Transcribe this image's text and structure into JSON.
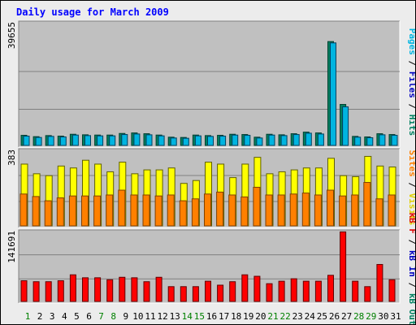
{
  "title": "Daily usage for March 2009",
  "chart_data": [
    {
      "type": "bar",
      "categories": [
        "1",
        "2",
        "3",
        "4",
        "5",
        "6",
        "7",
        "8",
        "9",
        "10",
        "11",
        "12",
        "13",
        "14",
        "15",
        "16",
        "17",
        "18",
        "19",
        "20",
        "21",
        "22",
        "23",
        "24",
        "25",
        "26",
        "27",
        "28",
        "29",
        "30",
        "31"
      ],
      "weekend_days": [
        "1",
        "7",
        "8",
        "14",
        "15",
        "21",
        "22",
        "28",
        "29"
      ],
      "ymax_label": "39655",
      "ylim": [
        0,
        39655
      ],
      "legend": [
        {
          "text": "Pages",
          "color": "#00b4e0"
        },
        {
          "text": " / ",
          "color": "#000000"
        },
        {
          "text": "Files",
          "color": "#0000c0"
        },
        {
          "text": " / ",
          "color": "#000000"
        },
        {
          "text": "Hits",
          "color": "#008060"
        }
      ],
      "series": [
        {
          "name": "Hits",
          "color": "#008060",
          "values": [
            3800,
            3300,
            3700,
            3500,
            4200,
            4000,
            3900,
            3900,
            4500,
            4700,
            4400,
            3900,
            3100,
            3000,
            3900,
            3700,
            3800,
            4200,
            4100,
            3100,
            4200,
            4000,
            4400,
            5000,
            4700,
            39000,
            15400,
            3400,
            3200,
            4400,
            4100
          ]
        },
        {
          "name": "Files",
          "color": "#00b4e0",
          "values": [
            3500,
            3000,
            3400,
            3200,
            3900,
            3700,
            3600,
            3600,
            4100,
            4300,
            4000,
            3600,
            2800,
            2700,
            3600,
            3400,
            3500,
            3900,
            3800,
            2800,
            3900,
            3700,
            4100,
            4600,
            4300,
            38500,
            14500,
            3100,
            2900,
            4000,
            3800
          ]
        }
      ]
    },
    {
      "type": "bar",
      "categories": [
        "1",
        "2",
        "3",
        "4",
        "5",
        "6",
        "7",
        "8",
        "9",
        "10",
        "11",
        "12",
        "13",
        "14",
        "15",
        "16",
        "17",
        "18",
        "19",
        "20",
        "21",
        "22",
        "23",
        "24",
        "25",
        "26",
        "27",
        "28",
        "29",
        "30",
        "31"
      ],
      "ymax_label": "383",
      "ylim": [
        0,
        383
      ],
      "legend": [
        {
          "text": "Sites",
          "color": "#ff8000"
        },
        {
          "text": " / ",
          "color": "#000000"
        },
        {
          "text": "Visits",
          "color": "#e0d000"
        }
      ],
      "series": [
        {
          "name": "Visits",
          "color": "#ffff00",
          "values": [
            320,
            270,
            260,
            310,
            300,
            340,
            320,
            280,
            330,
            270,
            290,
            290,
            300,
            220,
            235,
            330,
            320,
            250,
            320,
            355,
            270,
            280,
            290,
            300,
            300,
            350,
            260,
            255,
            360,
            310,
            305
          ]
        },
        {
          "name": "Sites",
          "color": "#ff8000",
          "values": [
            165,
            152,
            130,
            145,
            155,
            155,
            155,
            160,
            185,
            160,
            160,
            155,
            160,
            130,
            140,
            165,
            175,
            160,
            150,
            200,
            160,
            160,
            165,
            170,
            160,
            185,
            155,
            160,
            225,
            140,
            160
          ]
        }
      ]
    },
    {
      "type": "bar",
      "categories": [
        "1",
        "2",
        "3",
        "4",
        "5",
        "6",
        "7",
        "8",
        "9",
        "10",
        "11",
        "12",
        "13",
        "14",
        "15",
        "16",
        "17",
        "18",
        "19",
        "20",
        "21",
        "22",
        "23",
        "24",
        "25",
        "26",
        "27",
        "28",
        "29",
        "30",
        "31"
      ],
      "ymax_label": "141691",
      "ylim": [
        0,
        141691
      ],
      "legend": [
        {
          "text": "kB F",
          "color": "#e00000"
        },
        {
          "text": " / ",
          "color": "#000000"
        },
        {
          "text": "kB In",
          "color": "#0000c0"
        },
        {
          "text": " / ",
          "color": "#000000"
        },
        {
          "text": "kB Out",
          "color": "#008060"
        }
      ],
      "series": [
        {
          "name": "kB F",
          "color": "#ff0000",
          "values": [
            42000,
            40000,
            40000,
            42000,
            54000,
            48000,
            48000,
            44000,
            49000,
            48000,
            40000,
            49000,
            30000,
            30000,
            30000,
            41000,
            33000,
            40000,
            54000,
            51000,
            36000,
            41000,
            46000,
            41000,
            41000,
            53000,
            141000,
            41000,
            30000,
            75000,
            44000
          ]
        }
      ]
    }
  ]
}
